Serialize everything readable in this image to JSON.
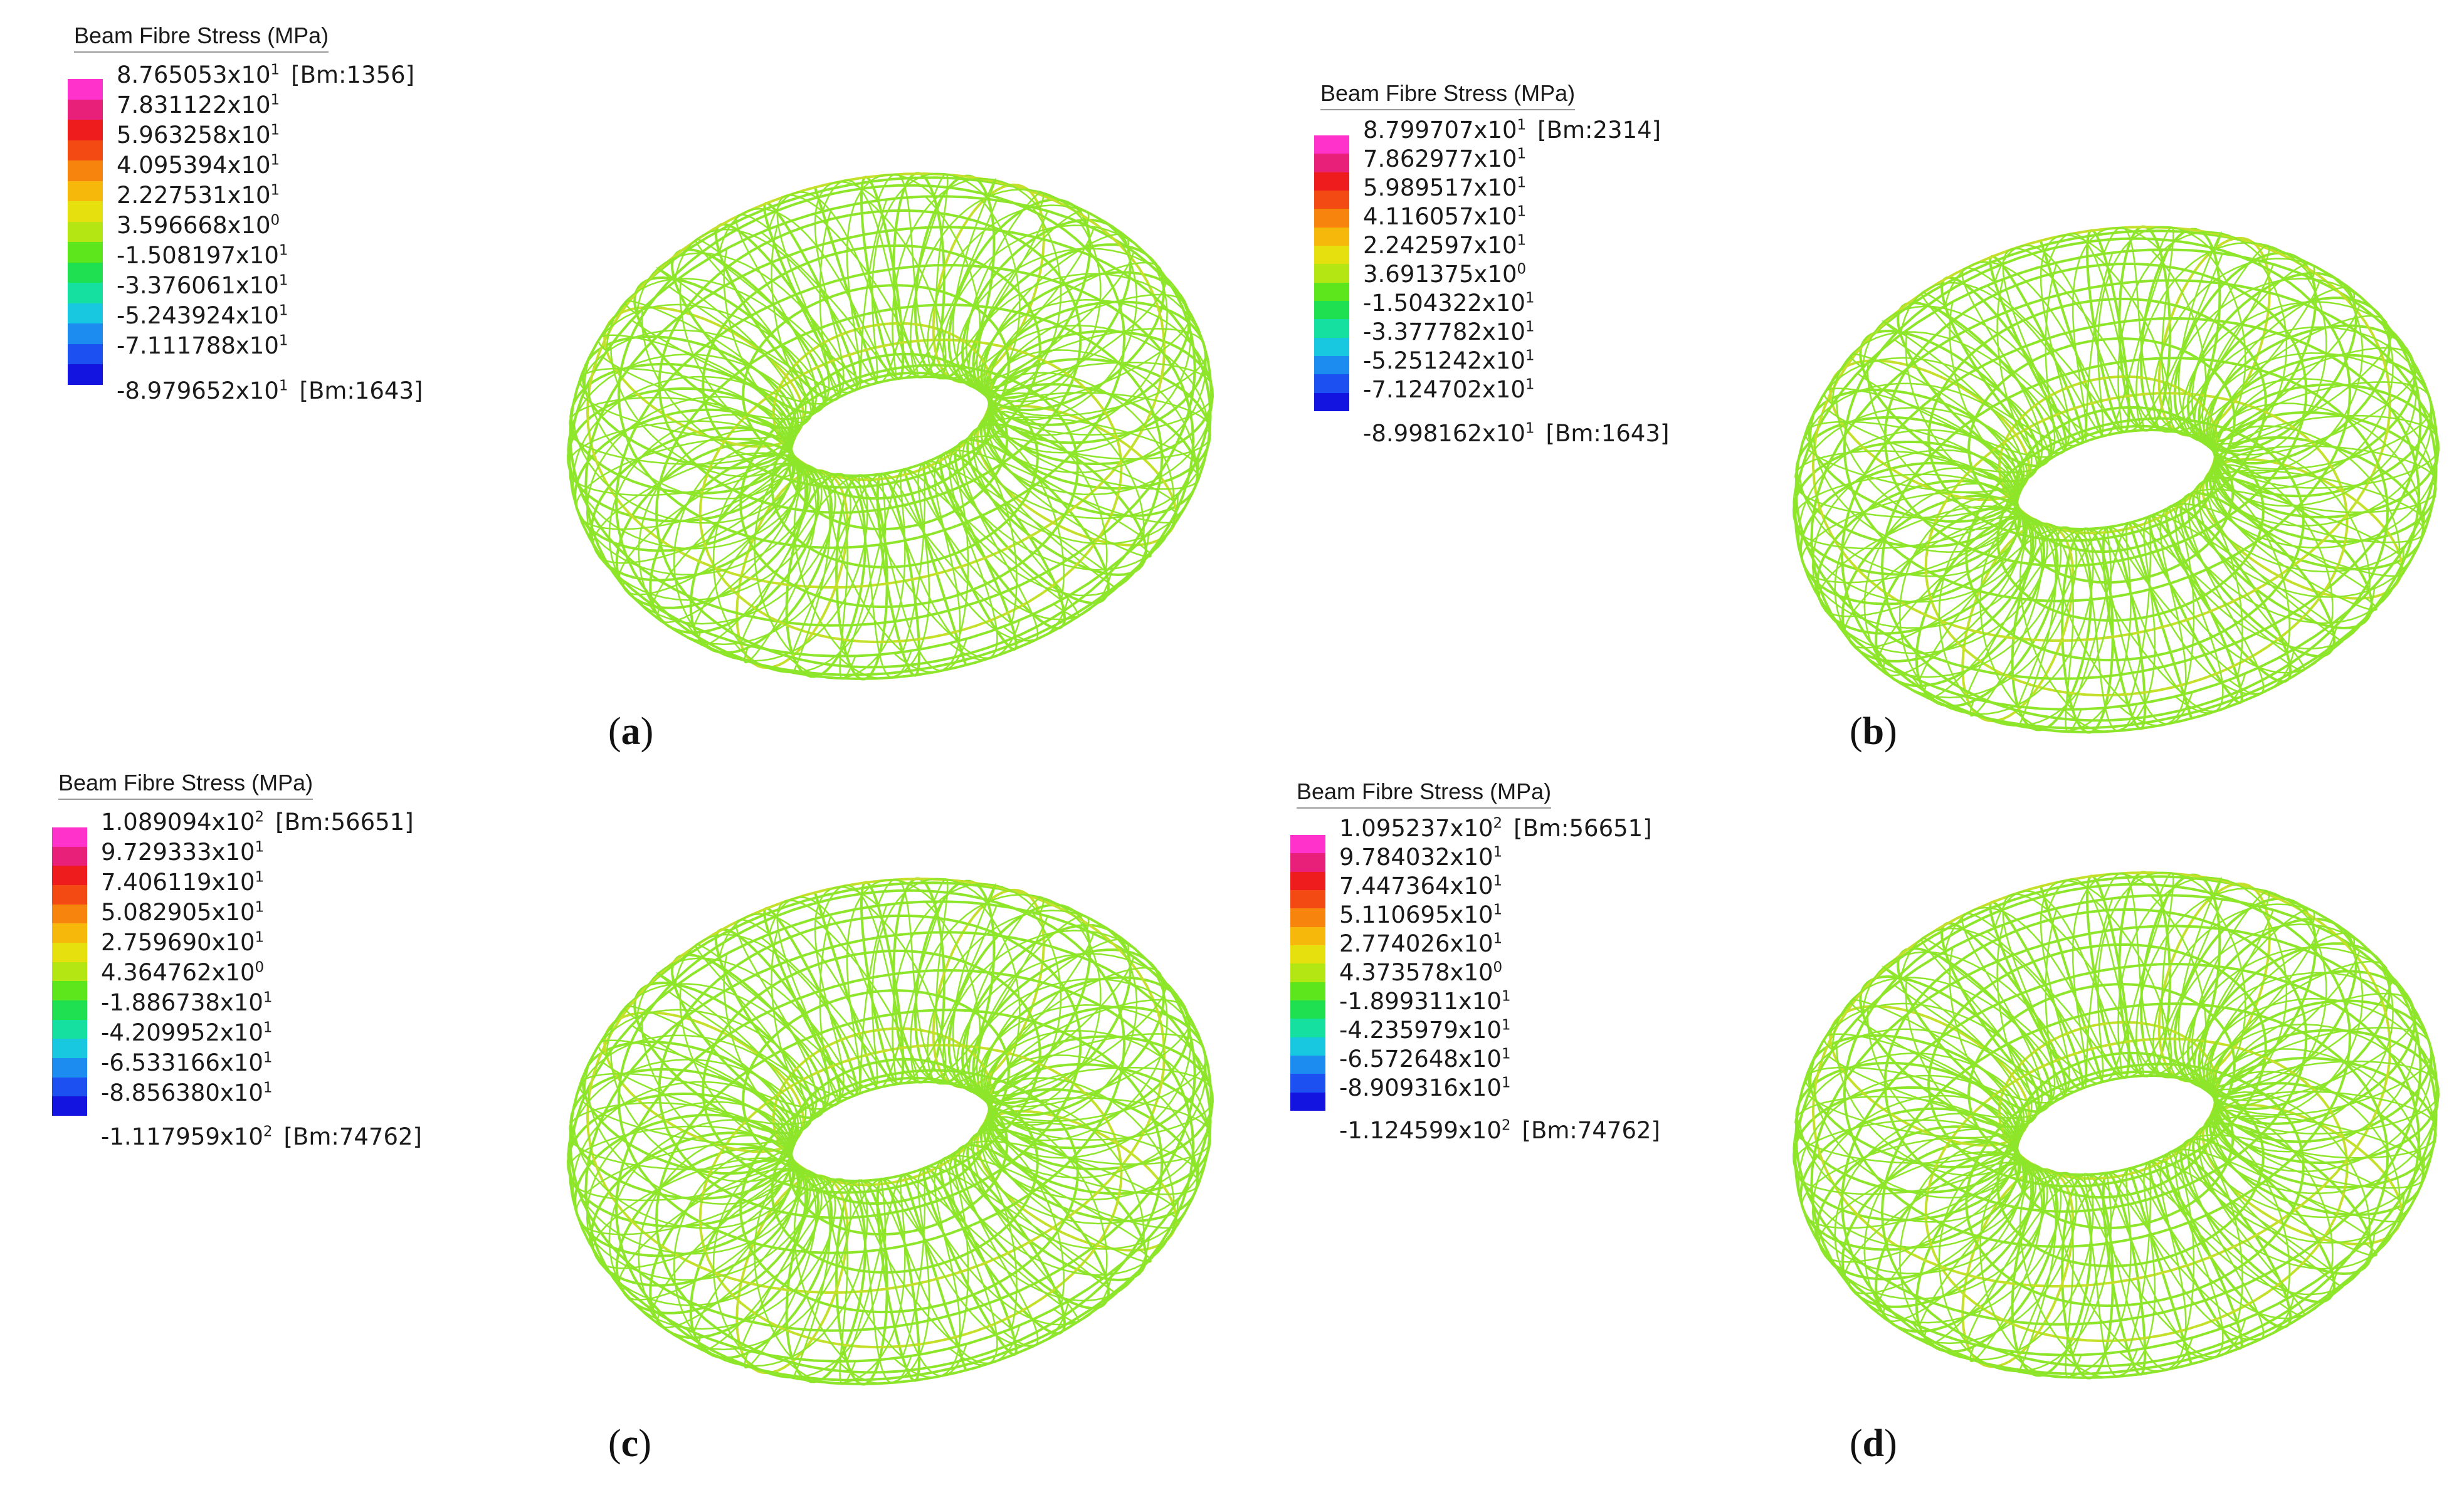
{
  "panels": [
    {
      "id": "a",
      "caption_letter": "a",
      "legend": {
        "title": "Beam Fibre Stress  (MPa)",
        "entries": [
          {
            "mant": "8.765053x10",
            "exp": "1",
            "tag": "[Bm:1356]"
          },
          {
            "mant": "7.831122x10",
            "exp": "1",
            "tag": ""
          },
          {
            "mant": "5.963258x10",
            "exp": "1",
            "tag": ""
          },
          {
            "mant": "4.095394x10",
            "exp": "1",
            "tag": ""
          },
          {
            "mant": "2.227531x10",
            "exp": "1",
            "tag": ""
          },
          {
            "mant": "3.596668x10",
            "exp": "0",
            "tag": ""
          },
          {
            "mant": "-1.508197x10",
            "exp": "1",
            "tag": ""
          },
          {
            "mant": "-3.376061x10",
            "exp": "1",
            "tag": ""
          },
          {
            "mant": "-5.243924x10",
            "exp": "1",
            "tag": ""
          },
          {
            "mant": "-7.111788x10",
            "exp": "1",
            "tag": ""
          },
          {
            "mant": "-8.979652x10",
            "exp": "1",
            "tag": "[Bm:1643]"
          }
        ]
      }
    },
    {
      "id": "b",
      "caption_letter": "b",
      "legend": {
        "title": "Beam Fibre Stress  (MPa)",
        "entries": [
          {
            "mant": "8.799707x10",
            "exp": "1",
            "tag": "[Bm:2314]"
          },
          {
            "mant": "7.862977x10",
            "exp": "1",
            "tag": ""
          },
          {
            "mant": "5.989517x10",
            "exp": "1",
            "tag": ""
          },
          {
            "mant": "4.116057x10",
            "exp": "1",
            "tag": ""
          },
          {
            "mant": "2.242597x10",
            "exp": "1",
            "tag": ""
          },
          {
            "mant": "3.691375x10",
            "exp": "0",
            "tag": ""
          },
          {
            "mant": "-1.504322x10",
            "exp": "1",
            "tag": ""
          },
          {
            "mant": "-3.377782x10",
            "exp": "1",
            "tag": ""
          },
          {
            "mant": "-5.251242x10",
            "exp": "1",
            "tag": ""
          },
          {
            "mant": "-7.124702x10",
            "exp": "1",
            "tag": ""
          },
          {
            "mant": "-8.998162x10",
            "exp": "1",
            "tag": "[Bm:1643]"
          }
        ]
      }
    },
    {
      "id": "c",
      "caption_letter": "c",
      "legend": {
        "title": "Beam Fibre Stress  (MPa)",
        "entries": [
          {
            "mant": "1.089094x10",
            "exp": "2",
            "tag": "[Bm:56651]"
          },
          {
            "mant": "9.729333x10",
            "exp": "1",
            "tag": ""
          },
          {
            "mant": "7.406119x10",
            "exp": "1",
            "tag": ""
          },
          {
            "mant": "5.082905x10",
            "exp": "1",
            "tag": ""
          },
          {
            "mant": "2.759690x10",
            "exp": "1",
            "tag": ""
          },
          {
            "mant": "4.364762x10",
            "exp": "0",
            "tag": ""
          },
          {
            "mant": "-1.886738x10",
            "exp": "1",
            "tag": ""
          },
          {
            "mant": "-4.209952x10",
            "exp": "1",
            "tag": ""
          },
          {
            "mant": "-6.533166x10",
            "exp": "1",
            "tag": ""
          },
          {
            "mant": "-8.856380x10",
            "exp": "1",
            "tag": ""
          },
          {
            "mant": "-1.117959x10",
            "exp": "2",
            "tag": "[Bm:74762]"
          }
        ]
      }
    },
    {
      "id": "d",
      "caption_letter": "d",
      "legend": {
        "title": "Beam Fibre Stress  (MPa)",
        "entries": [
          {
            "mant": "1.095237x10",
            "exp": "2",
            "tag": "[Bm:56651]"
          },
          {
            "mant": "9.784032x10",
            "exp": "1",
            "tag": ""
          },
          {
            "mant": "7.447364x10",
            "exp": "1",
            "tag": ""
          },
          {
            "mant": "5.110695x10",
            "exp": "1",
            "tag": ""
          },
          {
            "mant": "2.774026x10",
            "exp": "1",
            "tag": ""
          },
          {
            "mant": "4.373578x10",
            "exp": "0",
            "tag": ""
          },
          {
            "mant": "-1.899311x10",
            "exp": "1",
            "tag": ""
          },
          {
            "mant": "-4.235979x10",
            "exp": "1",
            "tag": ""
          },
          {
            "mant": "-6.572648x10",
            "exp": "1",
            "tag": ""
          },
          {
            "mant": "-8.909316x10",
            "exp": "1",
            "tag": ""
          },
          {
            "mant": "-1.124599x10",
            "exp": "2",
            "tag": "[Bm:74762]"
          }
        ]
      }
    }
  ],
  "colors": {
    "mesh_main": "#8ee62a",
    "mesh_accent": "#c4e02a",
    "colorbar": [
      "#ff33cc",
      "#e8207a",
      "#ee1c1c",
      "#f24a12",
      "#f7840c",
      "#f7b80c",
      "#e6e00e",
      "#b4e614",
      "#5ee61c",
      "#1ee050",
      "#16e0a0",
      "#18c8e0",
      "#1c8cf0",
      "#1c50f0",
      "#1414e0"
    ]
  }
}
